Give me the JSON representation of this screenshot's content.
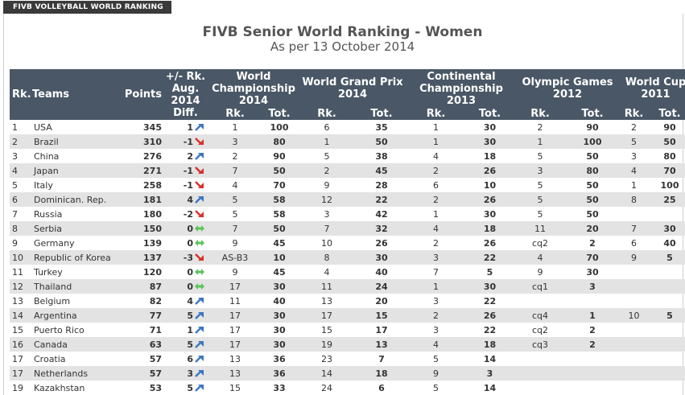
{
  "header": {
    "tab_label": "FIVB VOLLEYBALL WORLD RANKING"
  },
  "title": "FIVB Senior World Ranking - Women",
  "subtitle": "As per 13 October 2014",
  "columns": {
    "rk": "Rk.",
    "teams": "Teams",
    "points": "Points",
    "diff": "+/- Rk. Aug. 2014 Diff.",
    "wch": "World Championship 2014",
    "wgp": "World Grand Prix 2014",
    "cc": "Continental Championship 2013",
    "og": "Olympic Games 2012",
    "wc": "World Cup 2011",
    "sub_rk": "Rk.",
    "sub_tot": "Tot."
  },
  "colors": {
    "header_bg": "#4a5766",
    "row_alt": "#e3e3e3",
    "arrow_up": "#3a78c2",
    "arrow_down": "#d8302a",
    "arrow_same": "#5cc45c"
  },
  "rows": [
    {
      "rk": "1",
      "team": "USA",
      "points": "345",
      "diff": "1",
      "trend": "up",
      "wch_rk": "1",
      "wch_tot": "100",
      "wgp_rk": "6",
      "wgp_tot": "35",
      "cc_rk": "1",
      "cc_tot": "30",
      "og_rk": "2",
      "og_tot": "90",
      "wc_rk": "2",
      "wc_tot": "90"
    },
    {
      "rk": "2",
      "team": "Brazil",
      "points": "310",
      "diff": "-1",
      "trend": "down",
      "wch_rk": "3",
      "wch_tot": "80",
      "wgp_rk": "1",
      "wgp_tot": "50",
      "cc_rk": "1",
      "cc_tot": "30",
      "og_rk": "1",
      "og_tot": "100",
      "wc_rk": "5",
      "wc_tot": "50"
    },
    {
      "rk": "3",
      "team": "China",
      "points": "276",
      "diff": "2",
      "trend": "up",
      "wch_rk": "2",
      "wch_tot": "90",
      "wgp_rk": "5",
      "wgp_tot": "38",
      "cc_rk": "4",
      "cc_tot": "18",
      "og_rk": "5",
      "og_tot": "50",
      "wc_rk": "3",
      "wc_tot": "80"
    },
    {
      "rk": "4",
      "team": "Japan",
      "points": "271",
      "diff": "-1",
      "trend": "down",
      "wch_rk": "7",
      "wch_tot": "50",
      "wgp_rk": "2",
      "wgp_tot": "45",
      "cc_rk": "2",
      "cc_tot": "26",
      "og_rk": "3",
      "og_tot": "80",
      "wc_rk": "4",
      "wc_tot": "70"
    },
    {
      "rk": "5",
      "team": "Italy",
      "points": "258",
      "diff": "-1",
      "trend": "down",
      "wch_rk": "4",
      "wch_tot": "70",
      "wgp_rk": "9",
      "wgp_tot": "28",
      "cc_rk": "6",
      "cc_tot": "10",
      "og_rk": "5",
      "og_tot": "50",
      "wc_rk": "1",
      "wc_tot": "100"
    },
    {
      "rk": "6",
      "team": "Dominican. Rep.",
      "points": "181",
      "diff": "4",
      "trend": "up",
      "wch_rk": "5",
      "wch_tot": "58",
      "wgp_rk": "12",
      "wgp_tot": "22",
      "cc_rk": "2",
      "cc_tot": "26",
      "og_rk": "5",
      "og_tot": "50",
      "wc_rk": "8",
      "wc_tot": "25"
    },
    {
      "rk": "7",
      "team": "Russia",
      "points": "180",
      "diff": "-2",
      "trend": "down",
      "wch_rk": "5",
      "wch_tot": "58",
      "wgp_rk": "3",
      "wgp_tot": "42",
      "cc_rk": "1",
      "cc_tot": "30",
      "og_rk": "5",
      "og_tot": "50",
      "wc_rk": "",
      "wc_tot": ""
    },
    {
      "rk": "8",
      "team": "Serbia",
      "points": "150",
      "diff": "0",
      "trend": "same",
      "wch_rk": "7",
      "wch_tot": "50",
      "wgp_rk": "7",
      "wgp_tot": "32",
      "cc_rk": "4",
      "cc_tot": "18",
      "og_rk": "11",
      "og_tot": "20",
      "wc_rk": "7",
      "wc_tot": "30"
    },
    {
      "rk": "9",
      "team": "Germany",
      "points": "139",
      "diff": "0",
      "trend": "same",
      "wch_rk": "9",
      "wch_tot": "45",
      "wgp_rk": "10",
      "wgp_tot": "26",
      "cc_rk": "2",
      "cc_tot": "26",
      "og_rk": "cq2",
      "og_tot": "2",
      "wc_rk": "6",
      "wc_tot": "40"
    },
    {
      "rk": "10",
      "team": "Republic of Korea",
      "points": "137",
      "diff": "-3",
      "trend": "down",
      "wch_rk": "AS-B3",
      "wch_tot": "10",
      "wgp_rk": "8",
      "wgp_tot": "30",
      "cc_rk": "3",
      "cc_tot": "22",
      "og_rk": "4",
      "og_tot": "70",
      "wc_rk": "9",
      "wc_tot": "5"
    },
    {
      "rk": "11",
      "team": "Turkey",
      "points": "120",
      "diff": "0",
      "trend": "same",
      "wch_rk": "9",
      "wch_tot": "45",
      "wgp_rk": "4",
      "wgp_tot": "40",
      "cc_rk": "7",
      "cc_tot": "5",
      "og_rk": "9",
      "og_tot": "30",
      "wc_rk": "",
      "wc_tot": ""
    },
    {
      "rk": "12",
      "team": "Thailand",
      "points": "87",
      "diff": "0",
      "trend": "same",
      "wch_rk": "17",
      "wch_tot": "30",
      "wgp_rk": "11",
      "wgp_tot": "24",
      "cc_rk": "1",
      "cc_tot": "30",
      "og_rk": "cq1",
      "og_tot": "3",
      "wc_rk": "",
      "wc_tot": ""
    },
    {
      "rk": "13",
      "team": "Belgium",
      "points": "82",
      "diff": "4",
      "trend": "up",
      "wch_rk": "11",
      "wch_tot": "40",
      "wgp_rk": "13",
      "wgp_tot": "20",
      "cc_rk": "3",
      "cc_tot": "22",
      "og_rk": "",
      "og_tot": "",
      "wc_rk": "",
      "wc_tot": ""
    },
    {
      "rk": "14",
      "team": "Argentina",
      "points": "77",
      "diff": "5",
      "trend": "up",
      "wch_rk": "17",
      "wch_tot": "30",
      "wgp_rk": "17",
      "wgp_tot": "15",
      "cc_rk": "2",
      "cc_tot": "26",
      "og_rk": "cq4",
      "og_tot": "1",
      "wc_rk": "10",
      "wc_tot": "5"
    },
    {
      "rk": "15",
      "team": "Puerto Rico",
      "points": "71",
      "diff": "1",
      "trend": "up",
      "wch_rk": "17",
      "wch_tot": "30",
      "wgp_rk": "15",
      "wgp_tot": "17",
      "cc_rk": "3",
      "cc_tot": "22",
      "og_rk": "cq2",
      "og_tot": "2",
      "wc_rk": "",
      "wc_tot": ""
    },
    {
      "rk": "16",
      "team": "Canada",
      "points": "63",
      "diff": "5",
      "trend": "up",
      "wch_rk": "17",
      "wch_tot": "30",
      "wgp_rk": "19",
      "wgp_tot": "13",
      "cc_rk": "4",
      "cc_tot": "18",
      "og_rk": "cq3",
      "og_tot": "2",
      "wc_rk": "",
      "wc_tot": ""
    },
    {
      "rk": "17",
      "team": "Croatia",
      "points": "57",
      "diff": "6",
      "trend": "up",
      "wch_rk": "13",
      "wch_tot": "36",
      "wgp_rk": "23",
      "wgp_tot": "7",
      "cc_rk": "5",
      "cc_tot": "14",
      "og_rk": "",
      "og_tot": "",
      "wc_rk": "",
      "wc_tot": ""
    },
    {
      "rk": "17",
      "team": "Netherlands",
      "points": "57",
      "diff": "3",
      "trend": "up",
      "wch_rk": "13",
      "wch_tot": "36",
      "wgp_rk": "14",
      "wgp_tot": "18",
      "cc_rk": "9",
      "cc_tot": "3",
      "og_rk": "",
      "og_tot": "",
      "wc_rk": "",
      "wc_tot": ""
    },
    {
      "rk": "19",
      "team": "Kazakhstan",
      "points": "53",
      "diff": "5",
      "trend": "up",
      "wch_rk": "15",
      "wch_tot": "33",
      "wgp_rk": "24",
      "wgp_tot": "6",
      "cc_rk": "5",
      "cc_tot": "14",
      "og_rk": "",
      "og_tot": "",
      "wc_rk": "",
      "wc_tot": ""
    }
  ]
}
